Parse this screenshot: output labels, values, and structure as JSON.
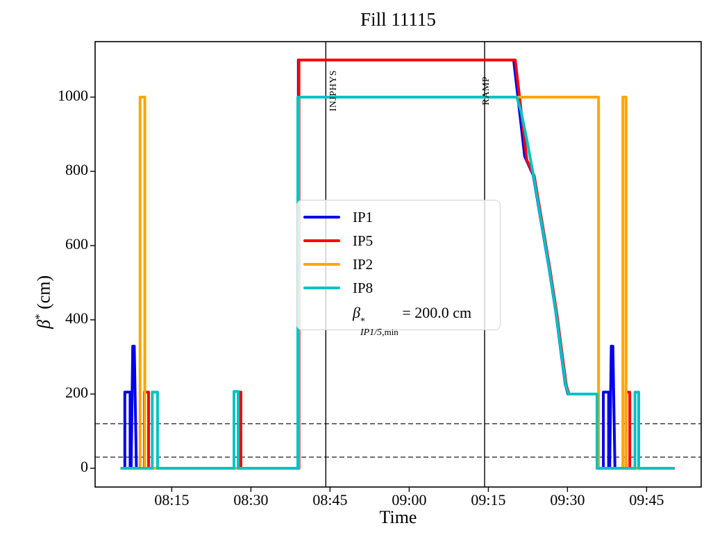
{
  "title": "Fill 11115",
  "legend": {
    "entries": [
      {
        "label": "IP1"
      },
      {
        "label": "IP5"
      },
      {
        "label": "IP2"
      },
      {
        "label": "IP8"
      }
    ],
    "formula": {
      "beta": "β",
      "sup": "*",
      "sub_italic": "IP1/5,",
      "sub_roman": "min",
      "rhs": " = 200.0 cm"
    }
  },
  "axes": {
    "ylabel_beta": "β",
    "ylabel_sup": "*",
    "ylabel_unit": " (cm)"
  },
  "chart_data": {
    "type": "line",
    "title": "Fill 11115",
    "xlabel": "Time",
    "ylabel": "beta* (cm)",
    "x_unit": "minutes after 08:00",
    "xlim_minutes": [
      0.5,
      115.3
    ],
    "ylim": [
      -50,
      1150
    ],
    "grid": false,
    "legend_position": "center",
    "x_ticks": [
      {
        "label": "08:15",
        "min": 15
      },
      {
        "label": "08:30",
        "min": 30
      },
      {
        "label": "08:45",
        "min": 45
      },
      {
        "label": "09:00",
        "min": 60
      },
      {
        "label": "09:15",
        "min": 75
      },
      {
        "label": "09:30",
        "min": 90
      },
      {
        "label": "09:45",
        "min": 105
      }
    ],
    "y_ticks": [
      {
        "label": "0",
        "value": 0
      },
      {
        "label": "200",
        "value": 200
      },
      {
        "label": "400",
        "value": 400
      },
      {
        "label": "600",
        "value": 600
      },
      {
        "label": "800",
        "value": 800
      },
      {
        "label": "1000",
        "value": 1000
      }
    ],
    "vlines": [
      {
        "label": "INJPHYS",
        "min": 44.2
      },
      {
        "label": "RAMP",
        "min": 74.3
      }
    ],
    "hlines_dashed": [
      120,
      30
    ],
    "series": [
      {
        "name": "IP1",
        "color": "#0000ee",
        "points": [
          [
            5.3,
            0
          ],
          [
            6.1,
            0
          ],
          [
            6.1,
            205
          ],
          [
            7.1,
            205
          ],
          [
            7.1,
            0
          ],
          [
            7.3,
            0
          ],
          [
            7.6,
            329
          ],
          [
            7.9,
            329
          ],
          [
            8.3,
            0
          ],
          [
            39.0,
            0
          ],
          [
            39.0,
            1100
          ],
          [
            79.8,
            1100
          ],
          [
            81.9,
            840
          ],
          [
            83.5,
            790
          ],
          [
            85.0,
            665
          ],
          [
            86.5,
            540
          ],
          [
            87.8,
            420
          ],
          [
            88.9,
            300
          ],
          [
            89.6,
            225
          ],
          [
            90.1,
            200
          ],
          [
            95.6,
            200
          ],
          [
            95.6,
            0
          ],
          [
            96.8,
            0
          ],
          [
            96.8,
            205
          ],
          [
            97.8,
            205
          ],
          [
            97.8,
            0
          ],
          [
            98.0,
            0
          ],
          [
            98.3,
            329
          ],
          [
            98.6,
            329
          ],
          [
            99.0,
            0
          ],
          [
            110.3,
            0
          ]
        ]
      },
      {
        "name": "IP5",
        "color": "#fb0006",
        "points": [
          [
            5.3,
            0
          ],
          [
            9.8,
            0
          ],
          [
            9.8,
            205
          ],
          [
            10.6,
            205
          ],
          [
            10.6,
            0
          ],
          [
            27.6,
            0
          ],
          [
            27.6,
            205
          ],
          [
            28.1,
            205
          ],
          [
            28.1,
            0
          ],
          [
            39.1,
            0
          ],
          [
            39.1,
            1100
          ],
          [
            80.1,
            1100
          ],
          [
            82.3,
            830
          ],
          [
            83.7,
            788
          ],
          [
            85.2,
            662
          ],
          [
            86.7,
            535
          ],
          [
            88.0,
            415
          ],
          [
            89.1,
            295
          ],
          [
            89.8,
            222
          ],
          [
            90.3,
            200
          ],
          [
            95.7,
            200
          ],
          [
            95.7,
            0
          ],
          [
            101.1,
            0
          ],
          [
            101.1,
            205
          ],
          [
            101.8,
            205
          ],
          [
            101.8,
            0
          ],
          [
            110.3,
            0
          ]
        ]
      },
      {
        "name": "IP2",
        "color": "#ffa600",
        "points": [
          [
            5.3,
            0
          ],
          [
            9.0,
            0
          ],
          [
            9.0,
            1000
          ],
          [
            9.9,
            1000
          ],
          [
            9.9,
            0
          ],
          [
            39.0,
            0
          ],
          [
            39.0,
            1000
          ],
          [
            95.9,
            1000
          ],
          [
            95.9,
            0
          ],
          [
            100.5,
            0
          ],
          [
            100.5,
            1000
          ],
          [
            101.1,
            1000
          ],
          [
            101.1,
            0
          ],
          [
            110.3,
            0
          ]
        ]
      },
      {
        "name": "IP8",
        "color": "#00c2c2",
        "points": [
          [
            5.3,
            0
          ],
          [
            11.3,
            0
          ],
          [
            11.3,
            205
          ],
          [
            12.3,
            205
          ],
          [
            12.3,
            0
          ],
          [
            26.8,
            0
          ],
          [
            26.8,
            207
          ],
          [
            27.6,
            207
          ],
          [
            27.6,
            0
          ],
          [
            38.9,
            0
          ],
          [
            38.9,
            1000
          ],
          [
            80.4,
            1000
          ],
          [
            81.2,
            962
          ],
          [
            82.3,
            885
          ],
          [
            83.6,
            785
          ],
          [
            85.1,
            660
          ],
          [
            86.6,
            533
          ],
          [
            87.9,
            413
          ],
          [
            89.0,
            293
          ],
          [
            89.7,
            222
          ],
          [
            90.2,
            200
          ],
          [
            95.6,
            200
          ],
          [
            95.6,
            0
          ],
          [
            102.8,
            0
          ],
          [
            102.8,
            205
          ],
          [
            103.5,
            205
          ],
          [
            103.5,
            0
          ],
          [
            110.3,
            0
          ]
        ]
      }
    ]
  }
}
